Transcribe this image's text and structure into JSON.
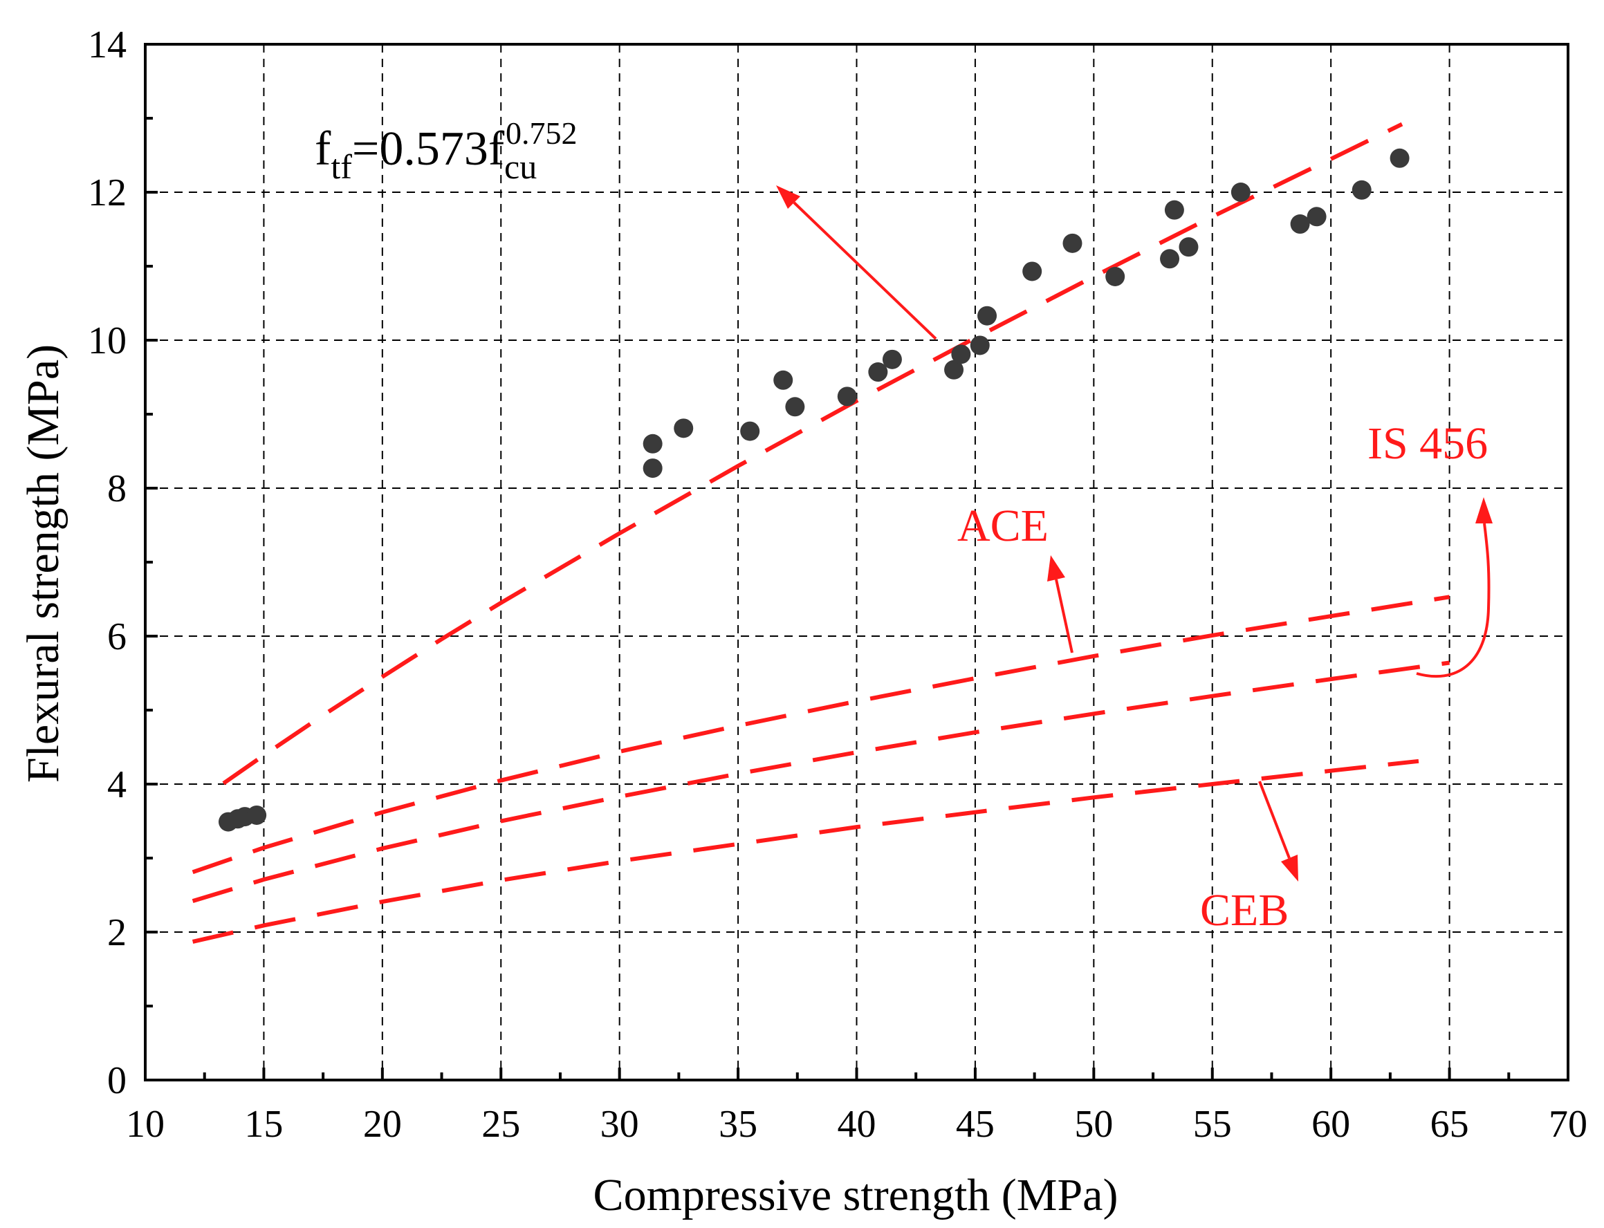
{
  "chart_data": {
    "type": "scatter",
    "xlabel": "Compressive strength (MPa)",
    "ylabel": "Flexural strength (MPa)",
    "xlim": [
      10,
      70
    ],
    "ylim": [
      0,
      14
    ],
    "xticks": [
      10,
      15,
      20,
      25,
      30,
      35,
      40,
      45,
      50,
      55,
      60,
      65,
      70
    ],
    "yticks": [
      0,
      2,
      4,
      6,
      8,
      10,
      12,
      14
    ],
    "grid": true,
    "points": {
      "color": "#3a3a3a",
      "x": [
        13.5,
        13.9,
        14.2,
        14.7,
        31.4,
        31.4,
        32.7,
        35.5,
        36.9,
        37.4,
        39.6,
        40.9,
        41.5,
        44.1,
        44.4,
        45.2,
        45.5,
        47.4,
        49.1,
        50.9,
        53.2,
        53.4,
        54.0,
        56.2,
        58.7,
        59.4,
        61.3,
        62.9
      ],
      "y": [
        3.49,
        3.53,
        3.56,
        3.58,
        8.6,
        8.27,
        8.81,
        8.77,
        9.46,
        9.1,
        9.24,
        9.57,
        9.74,
        9.6,
        9.81,
        9.93,
        10.33,
        10.93,
        11.31,
        10.86,
        11.1,
        11.76,
        11.26,
        12.0,
        11.57,
        11.67,
        12.03,
        12.46
      ]
    },
    "series": [
      {
        "color": "#ff1a1a",
        "x": [
          13.3,
          15,
          17.5,
          20,
          22.5,
          25,
          30,
          35,
          40,
          45,
          50,
          55,
          60,
          63
        ],
        "y": [
          4.01,
          4.39,
          4.93,
          5.45,
          5.96,
          6.45,
          7.39,
          8.3,
          9.18,
          10.03,
          10.86,
          11.67,
          12.45,
          12.92
        ]
      },
      {
        "name": "ACE",
        "color": "#ff1a1a",
        "x": [
          12,
          15,
          20,
          25,
          30,
          35,
          40,
          45,
          50,
          55,
          60,
          65
        ],
        "y": [
          2.81,
          3.14,
          3.62,
          4.05,
          4.44,
          4.79,
          5.12,
          5.43,
          5.73,
          6.01,
          6.27,
          6.53
        ]
      },
      {
        "name": "IS 456",
        "color": "#ff1a1a",
        "x": [
          12,
          15,
          20,
          25,
          30,
          35,
          40,
          45,
          50,
          55,
          60,
          65
        ],
        "y": [
          2.42,
          2.71,
          3.13,
          3.5,
          3.83,
          4.14,
          4.43,
          4.7,
          4.95,
          5.19,
          5.42,
          5.64
        ]
      },
      {
        "name": "CEB",
        "color": "#ff1a1a",
        "x": [
          12,
          15,
          20,
          25,
          30,
          35,
          40,
          45,
          50,
          55,
          60,
          63.7
        ],
        "y": [
          1.87,
          2.09,
          2.41,
          2.7,
          2.96,
          3.19,
          3.42,
          3.62,
          3.82,
          4.0,
          4.18,
          4.31
        ]
      }
    ],
    "equation": {
      "f": "f",
      "sub1": "tf",
      "mid": "=0.573f",
      "sup2": "0.752",
      "sub2": "cu"
    }
  }
}
